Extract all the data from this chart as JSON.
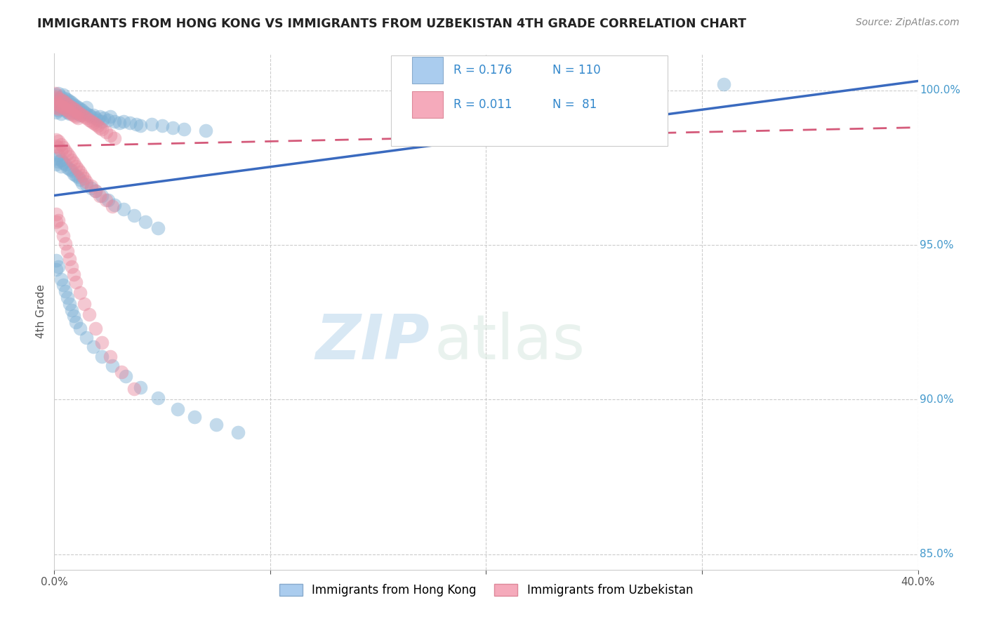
{
  "title": "IMMIGRANTS FROM HONG KONG VS IMMIGRANTS FROM UZBEKISTAN 4TH GRADE CORRELATION CHART",
  "source_text": "Source: ZipAtlas.com",
  "ylabel": "4th Grade",
  "xlim": [
    0.0,
    0.4
  ],
  "ylim": [
    0.845,
    1.012
  ],
  "xticks": [
    0.0,
    0.1,
    0.2,
    0.3,
    0.4
  ],
  "xtick_labels": [
    "0.0%",
    "",
    "",
    "",
    "40.0%"
  ],
  "yticks": [
    0.85,
    0.9,
    0.95,
    1.0
  ],
  "ytick_labels": [
    "85.0%",
    "90.0%",
    "95.0%",
    "100.0%"
  ],
  "hk_color": "#7bafd4",
  "uz_color": "#e8879c",
  "hk_line_color": "#3a6abf",
  "uz_line_color": "#d45a7a",
  "hk_R": 0.176,
  "hk_N": 110,
  "uz_R": 0.011,
  "uz_N": 81,
  "legend_hk": "Immigrants from Hong Kong",
  "legend_uz": "Immigrants from Uzbekistan",
  "watermark_zip": "ZIP",
  "watermark_atlas": "atlas",
  "hk_line_x0": 0.0,
  "hk_line_y0": 0.966,
  "hk_line_x1": 0.4,
  "hk_line_y1": 1.003,
  "uz_line_x0": 0.0,
  "uz_line_y0": 0.982,
  "uz_line_x1": 0.4,
  "uz_line_y1": 0.988,
  "hk_scatter_x": [
    0.0005,
    0.001,
    0.001,
    0.001,
    0.001,
    0.002,
    0.002,
    0.002,
    0.002,
    0.003,
    0.003,
    0.003,
    0.003,
    0.004,
    0.004,
    0.004,
    0.005,
    0.005,
    0.005,
    0.006,
    0.006,
    0.006,
    0.007,
    0.007,
    0.007,
    0.008,
    0.008,
    0.009,
    0.009,
    0.01,
    0.01,
    0.011,
    0.011,
    0.012,
    0.012,
    0.013,
    0.014,
    0.015,
    0.015,
    0.016,
    0.017,
    0.018,
    0.019,
    0.02,
    0.021,
    0.022,
    0.023,
    0.025,
    0.026,
    0.028,
    0.03,
    0.032,
    0.035,
    0.038,
    0.04,
    0.045,
    0.05,
    0.055,
    0.06,
    0.07,
    0.001,
    0.001,
    0.002,
    0.002,
    0.003,
    0.003,
    0.004,
    0.005,
    0.006,
    0.007,
    0.008,
    0.009,
    0.01,
    0.011,
    0.012,
    0.013,
    0.015,
    0.017,
    0.019,
    0.022,
    0.025,
    0.028,
    0.032,
    0.037,
    0.042,
    0.048,
    0.001,
    0.001,
    0.002,
    0.003,
    0.004,
    0.005,
    0.006,
    0.007,
    0.008,
    0.009,
    0.01,
    0.012,
    0.015,
    0.018,
    0.022,
    0.027,
    0.033,
    0.04,
    0.048,
    0.057,
    0.065,
    0.075,
    0.085,
    0.31
  ],
  "hk_scatter_y": [
    0.9985,
    0.9975,
    0.9965,
    0.9945,
    0.993,
    0.999,
    0.997,
    0.995,
    0.9935,
    0.998,
    0.996,
    0.994,
    0.9925,
    0.9985,
    0.9965,
    0.9945,
    0.9975,
    0.9955,
    0.9935,
    0.997,
    0.995,
    0.993,
    0.9965,
    0.9945,
    0.9925,
    0.996,
    0.994,
    0.9955,
    0.9935,
    0.995,
    0.993,
    0.9945,
    0.9925,
    0.994,
    0.992,
    0.9935,
    0.993,
    0.9925,
    0.9945,
    0.992,
    0.9915,
    0.992,
    0.991,
    0.9905,
    0.9915,
    0.99,
    0.991,
    0.9905,
    0.9915,
    0.99,
    0.9895,
    0.99,
    0.9895,
    0.989,
    0.9885,
    0.989,
    0.9885,
    0.988,
    0.9875,
    0.987,
    0.978,
    0.976,
    0.979,
    0.977,
    0.9775,
    0.9755,
    0.9765,
    0.976,
    0.975,
    0.9745,
    0.974,
    0.973,
    0.9725,
    0.972,
    0.971,
    0.97,
    0.9695,
    0.9685,
    0.9675,
    0.966,
    0.9645,
    0.963,
    0.9615,
    0.9595,
    0.9575,
    0.9555,
    0.945,
    0.942,
    0.943,
    0.939,
    0.937,
    0.935,
    0.933,
    0.931,
    0.929,
    0.927,
    0.925,
    0.923,
    0.92,
    0.917,
    0.914,
    0.911,
    0.9075,
    0.904,
    0.9005,
    0.897,
    0.8945,
    0.892,
    0.8895,
    1.002
  ],
  "uz_scatter_x": [
    0.0005,
    0.001,
    0.001,
    0.001,
    0.002,
    0.002,
    0.002,
    0.003,
    0.003,
    0.004,
    0.004,
    0.005,
    0.005,
    0.006,
    0.006,
    0.007,
    0.007,
    0.008,
    0.008,
    0.009,
    0.009,
    0.01,
    0.01,
    0.011,
    0.011,
    0.012,
    0.013,
    0.014,
    0.015,
    0.016,
    0.017,
    0.018,
    0.019,
    0.02,
    0.021,
    0.022,
    0.024,
    0.026,
    0.028,
    0.001,
    0.001,
    0.002,
    0.002,
    0.003,
    0.003,
    0.004,
    0.005,
    0.006,
    0.007,
    0.008,
    0.009,
    0.01,
    0.011,
    0.012,
    0.013,
    0.014,
    0.015,
    0.017,
    0.019,
    0.021,
    0.024,
    0.027,
    0.001,
    0.001,
    0.002,
    0.003,
    0.004,
    0.005,
    0.006,
    0.007,
    0.008,
    0.009,
    0.01,
    0.012,
    0.014,
    0.016,
    0.019,
    0.022,
    0.026,
    0.031,
    0.037
  ],
  "uz_scatter_y": [
    0.999,
    0.998,
    0.996,
    0.9945,
    0.9975,
    0.9955,
    0.994,
    0.997,
    0.995,
    0.9965,
    0.9945,
    0.996,
    0.994,
    0.9955,
    0.9935,
    0.995,
    0.993,
    0.9945,
    0.9925,
    0.994,
    0.992,
    0.9935,
    0.9915,
    0.993,
    0.991,
    0.9925,
    0.992,
    0.9915,
    0.991,
    0.9905,
    0.99,
    0.9895,
    0.989,
    0.9885,
    0.988,
    0.9875,
    0.9865,
    0.9855,
    0.9845,
    0.984,
    0.982,
    0.9835,
    0.9815,
    0.9825,
    0.9805,
    0.9815,
    0.9805,
    0.9795,
    0.9785,
    0.9775,
    0.9765,
    0.9755,
    0.9745,
    0.9735,
    0.9725,
    0.9715,
    0.9705,
    0.969,
    0.9675,
    0.966,
    0.9645,
    0.9625,
    0.96,
    0.9575,
    0.958,
    0.9555,
    0.953,
    0.9505,
    0.948,
    0.9455,
    0.943,
    0.9405,
    0.938,
    0.9345,
    0.931,
    0.9275,
    0.923,
    0.9185,
    0.914,
    0.909,
    0.9035
  ]
}
